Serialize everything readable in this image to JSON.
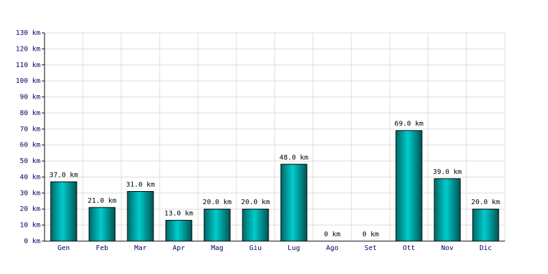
{
  "chart_data": {
    "type": "bar",
    "categories": [
      "Gen",
      "Feb",
      "Mar",
      "Apr",
      "Mag",
      "Giu",
      "Lug",
      "Ago",
      "Set",
      "Ott",
      "Nov",
      "Dic"
    ],
    "values": [
      37,
      21,
      31,
      13,
      20,
      20,
      48,
      0,
      0,
      69,
      39,
      20
    ],
    "value_labels": [
      "37.0 km",
      "21.0 km",
      "31.0 km",
      "13.0 km",
      "20.0 km",
      "20.0 km",
      "48.0 km",
      "0 km",
      "0 km",
      "69.0 km",
      "39.0 km",
      "20.0 km"
    ],
    "color": "#00cccc",
    "ylim": [
      0,
      130
    ],
    "yticks": [
      {
        "value": 0,
        "label": "0 km"
      },
      {
        "value": 10,
        "label": "10 km"
      },
      {
        "value": 20,
        "label": "20 km"
      },
      {
        "value": 30,
        "label": "30 km"
      },
      {
        "value": 40,
        "label": "40 km"
      },
      {
        "value": 50,
        "label": "50 km"
      },
      {
        "value": 60,
        "label": "60 km"
      },
      {
        "value": 70,
        "label": "70 km"
      },
      {
        "value": 80,
        "label": "80 km"
      },
      {
        "value": 90,
        "label": "90 km"
      },
      {
        "value": 100,
        "label": "100 km"
      },
      {
        "value": 110,
        "label": "110 km"
      },
      {
        "value": 120,
        "label": "120 km"
      },
      {
        "value": 130,
        "label": "130 km"
      }
    ],
    "grid": true
  }
}
